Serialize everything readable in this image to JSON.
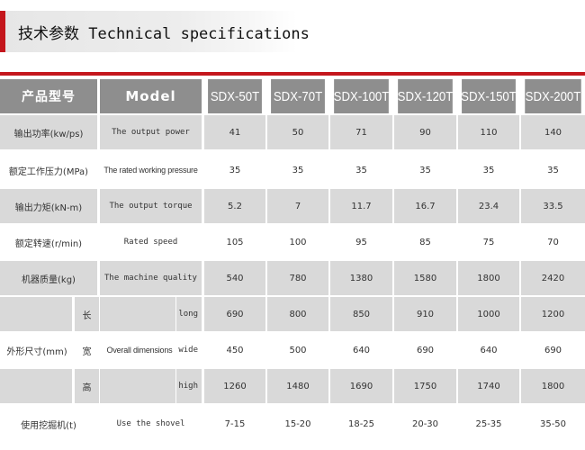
{
  "header": {
    "title": "技术参数 Technical specifications"
  },
  "table": {
    "header_row": {
      "zh_label": "产品型号",
      "en_label": "Model",
      "models": [
        "SDX-50T",
        "SDX-70T",
        "SDX-100T",
        "SDX-120T",
        "SDX-150T",
        "SDX-200T"
      ]
    },
    "rows": [
      {
        "zh": "输出功率(kw/ps)",
        "en": "The output power",
        "values": [
          "41",
          "50",
          "71",
          "90",
          "110",
          "140"
        ]
      },
      {
        "zh": "额定工作压力(MPa)",
        "en": "The rated working pressure",
        "values": [
          "35",
          "35",
          "35",
          "35",
          "35",
          "35"
        ]
      },
      {
        "zh": "输出力矩(kN-m)",
        "en": "The output torque",
        "values": [
          "5.2",
          "7",
          "11.7",
          "16.7",
          "23.4",
          "33.5"
        ]
      },
      {
        "zh": "额定转速(r/min)",
        "en": "Rated speed",
        "values": [
          "105",
          "100",
          "95",
          "85",
          "75",
          "70"
        ]
      },
      {
        "zh": "机器质量(kg)",
        "en": "The machine quality",
        "values": [
          "540",
          "780",
          "1380",
          "1580",
          "1800",
          "2420"
        ]
      }
    ],
    "dimensions": {
      "zh": "外形尺寸(mm)",
      "en": "Overall dimensions",
      "sub_rows": [
        {
          "zh": "长",
          "en": "long",
          "values": [
            "690",
            "800",
            "850",
            "910",
            "1000",
            "1200"
          ]
        },
        {
          "zh": "宽",
          "en": "wide",
          "values": [
            "450",
            "500",
            "640",
            "690",
            "640",
            "690"
          ]
        },
        {
          "zh": "高",
          "en": "high",
          "values": [
            "1260",
            "1480",
            "1690",
            "1750",
            "1740",
            "1800"
          ]
        }
      ]
    },
    "last_row": {
      "zh": "使用挖掘机(t)",
      "en": "Use the shovel",
      "values": [
        "7-15",
        "15-20",
        "18-25",
        "20-30",
        "25-35",
        "35-50"
      ]
    }
  }
}
